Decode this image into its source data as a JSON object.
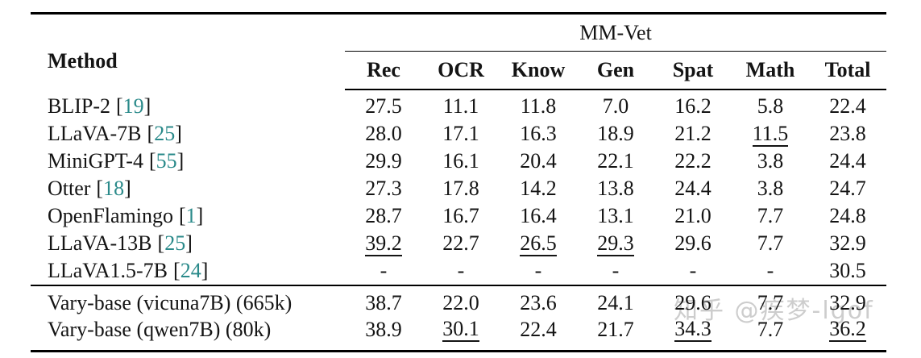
{
  "table": {
    "method_header": "Method",
    "group_header": "MM-Vet",
    "columns": [
      "Rec",
      "OCR",
      "Know",
      "Gen",
      "Spat",
      "Math",
      "Total"
    ],
    "rows": [
      {
        "method": "BLIP-2",
        "cite": "19",
        "values": [
          "27.5",
          "11.1",
          "11.8",
          "7.0",
          "16.2",
          "5.8",
          "22.4"
        ],
        "underlined": []
      },
      {
        "method": "LLaVA-7B",
        "cite": "25",
        "values": [
          "28.0",
          "17.1",
          "16.3",
          "18.9",
          "21.2",
          "11.5",
          "23.8"
        ],
        "underlined": [
          "Math"
        ]
      },
      {
        "method": "MiniGPT-4",
        "cite": "55",
        "values": [
          "29.9",
          "16.1",
          "20.4",
          "22.1",
          "22.2",
          "3.8",
          "24.4"
        ],
        "underlined": []
      },
      {
        "method": "Otter",
        "cite": "18",
        "values": [
          "27.3",
          "17.8",
          "14.2",
          "13.8",
          "24.4",
          "3.8",
          "24.7"
        ],
        "underlined": []
      },
      {
        "method": "OpenFlamingo",
        "cite": "1",
        "values": [
          "28.7",
          "16.7",
          "16.4",
          "13.1",
          "21.0",
          "7.7",
          "24.8"
        ],
        "underlined": []
      },
      {
        "method": "LLaVA-13B",
        "cite": "25",
        "values": [
          "39.2",
          "22.7",
          "26.5",
          "29.3",
          "29.6",
          "7.7",
          "32.9"
        ],
        "underlined": [
          "Rec",
          "Know",
          "Gen"
        ]
      },
      {
        "method": "LLaVA1.5-7B",
        "cite": "24",
        "values": [
          "-",
          "-",
          "-",
          "-",
          "-",
          "-",
          "30.5"
        ],
        "underlined": []
      }
    ],
    "rows_group2": [
      {
        "method": "Vary-base (vicuna7B) (665k)",
        "values": [
          "38.7",
          "22.0",
          "23.6",
          "24.1",
          "29.6",
          "7.7",
          "32.9"
        ],
        "underlined": []
      },
      {
        "method": "Vary-base (qwen7B) (80k)",
        "values": [
          "38.9",
          "30.1",
          "22.4",
          "21.7",
          "34.3",
          "7.7",
          "36.2"
        ],
        "underlined": [
          "OCR",
          "Spat",
          "Total"
        ]
      }
    ]
  },
  "punct": {
    "open_bracket": "[",
    "close_bracket": "]"
  },
  "watermark": {
    "text": "知乎 @疾梦-lgof"
  },
  "colors": {
    "text": "#141414",
    "citation_link": "#2a8a8a",
    "watermark": "#c8c8c8",
    "rule": "#000000"
  }
}
